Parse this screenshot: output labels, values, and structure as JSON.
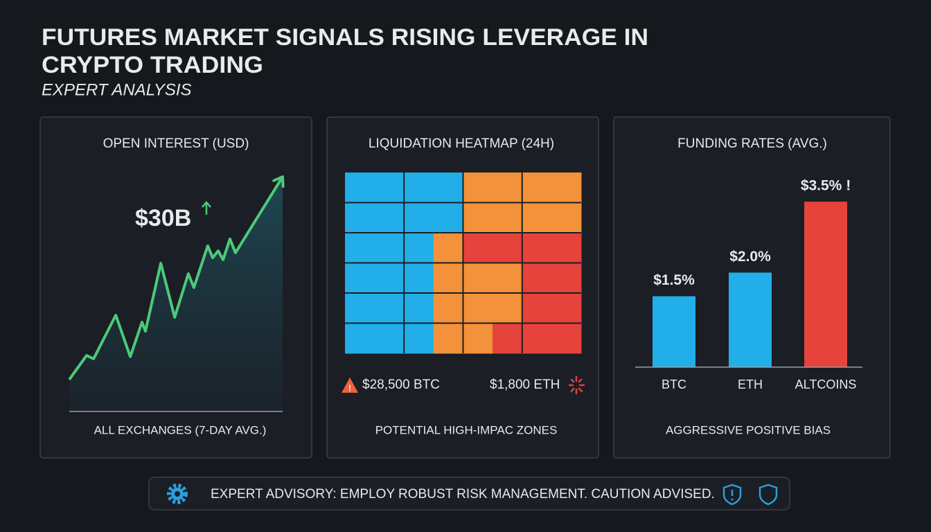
{
  "header": {
    "title_lines": [
      "FUTURES MARKET SIGNALS RISING LEVERAGE IN",
      "CRYPTO TRADING"
    ],
    "subtitle": "EXPERT ANALYSIS"
  },
  "chart_data": [
    {
      "type": "line",
      "title": "OPEN INTEREST (USD)",
      "annotation": "$30B",
      "footer": "ALL EXCHANGES (7-DAY AVG.)",
      "color": "#4cc97a",
      "x": [
        0,
        8.1,
        11.4,
        21.8,
        28.6,
        34.1,
        35.7,
        42.9,
        49.4,
        55.8,
        58.4,
        64.9,
        67.2,
        69.8,
        72.1,
        75.3,
        77.9,
        100
      ],
      "values": [
        13.4,
        23.5,
        22.1,
        40.4,
        23.0,
        37.5,
        33.7,
        62.2,
        39.5,
        57.8,
        52.0,
        69.5,
        64.5,
        67.4,
        63.7,
        72.4,
        66.6,
        98.5
      ],
      "xlim": [
        0,
        100
      ],
      "ylim": [
        0,
        100
      ]
    },
    {
      "type": "heatmap",
      "title": "LIQUIDATION HEATMAP (24H)",
      "colors": [
        "#22aee8",
        "#f3923a",
        "#e5433b"
      ],
      "values": [
        [
          0,
          0,
          0,
          0,
          1,
          1,
          1,
          1
        ],
        [
          0,
          0,
          0,
          0,
          1,
          1,
          1,
          1
        ],
        [
          0,
          0,
          0,
          1,
          2,
          2,
          2,
          2
        ],
        [
          0,
          0,
          0,
          1,
          1,
          1,
          2,
          2
        ],
        [
          0,
          0,
          0,
          1,
          1,
          1,
          2,
          2
        ],
        [
          0,
          0,
          0,
          1,
          1,
          2,
          2,
          2
        ]
      ],
      "annotations": [
        "$28,500 BTC",
        "$1,800 ETH"
      ],
      "footer": "POTENTIAL HIGH-IMPAC ZONES"
    },
    {
      "type": "bar",
      "title": "FUNDING RATES (AVG.)",
      "categories": [
        "BTC",
        "ETH",
        "ALTCOINS"
      ],
      "values": [
        1.5,
        2.0,
        3.5
      ],
      "value_labels": [
        "$1.5%",
        "$2.0%",
        "$3.5% !"
      ],
      "colors": [
        "#22aee8",
        "#22aee8",
        "#e5433b"
      ],
      "ylim": [
        0,
        4
      ],
      "footer": "AGGRESSIVE POSITIVE BIAS"
    }
  ],
  "advisory": "EXPERT ADVISORY: EMPLOY ROBUST RISK MANAGEMENT. CAUTION ADVISED."
}
